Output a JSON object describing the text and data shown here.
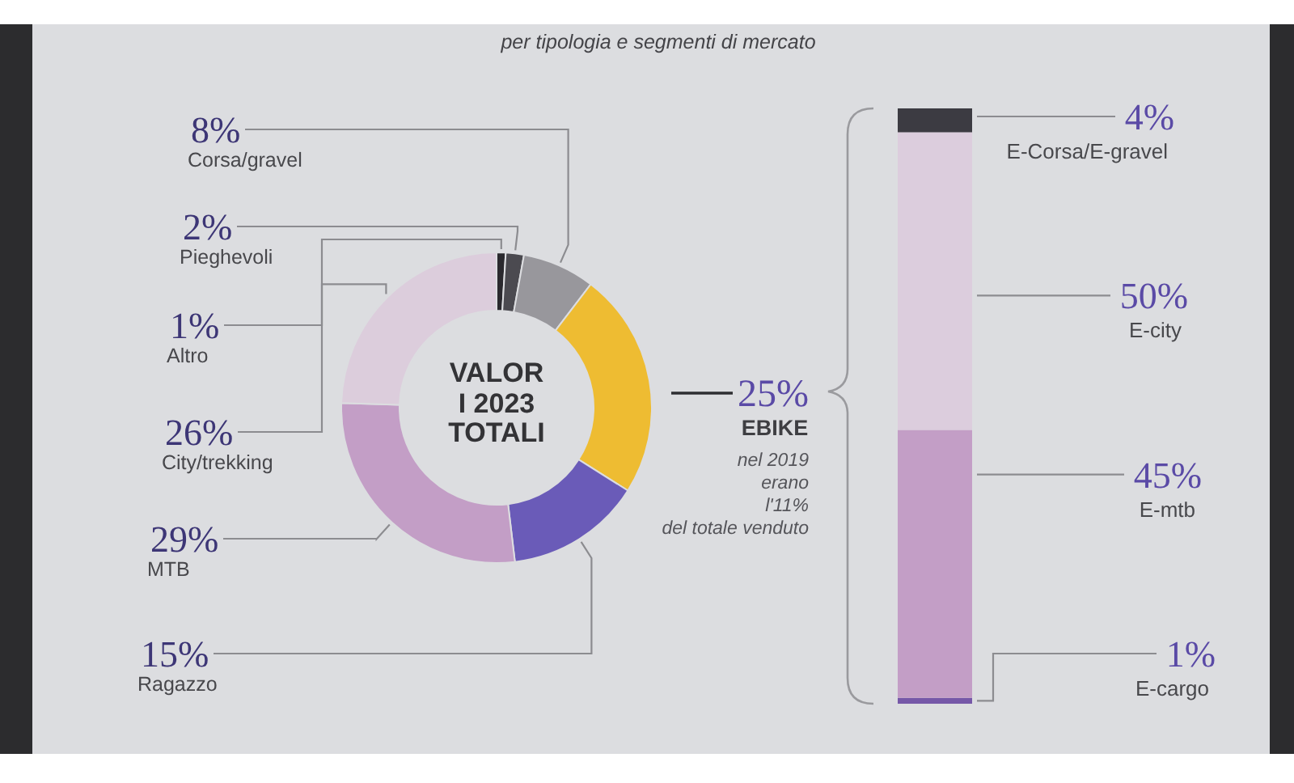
{
  "chart_data": [
    {
      "type": "donut",
      "subtitle": "per tipologia e segmenti di mercato",
      "categories": [
        "Altro",
        "Pieghevoli",
        "Corsa/gravel",
        "EBIKE",
        "Ragazzo",
        "MTB",
        "City/trekking"
      ],
      "values": [
        1,
        2,
        8,
        25,
        15,
        29,
        26
      ],
      "value_labels": [
        "1%",
        "2%",
        "8%",
        "25%",
        "15%",
        "29%",
        "26%"
      ],
      "colors": [
        "#2a292e",
        "#4b4a50",
        "#98979c",
        "#eebc32",
        "#6a5bb8",
        "#c39ec6",
        "#dccddc"
      ],
      "annotations": [
        "VALORI 2023 TOTALI",
        "nel 2019\nerano\nl'11%\ndel totale venduto"
      ]
    },
    {
      "type": "bar",
      "stacked": true,
      "tick_labels": false,
      "categories": [
        null
      ],
      "series": [
        {
          "name": "E-cargo",
          "color": "#7658a8",
          "values": [
            1
          ],
          "value_labels": [
            "1%"
          ]
        },
        {
          "name": "E-mtb",
          "color": "#c39ec6",
          "values": [
            45
          ],
          "value_labels": [
            "45%"
          ]
        },
        {
          "name": "E-city",
          "color": "#dccddd",
          "values": [
            50
          ],
          "value_labels": [
            "50%"
          ]
        },
        {
          "name": "E-Corsa/E-gravel",
          "color": "#3c3b42",
          "values": [
            4
          ],
          "value_labels": [
            "4%"
          ]
        }
      ]
    }
  ]
}
